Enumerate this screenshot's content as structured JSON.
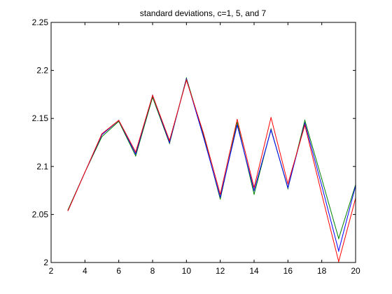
{
  "chart_data": {
    "type": "line",
    "title": "standard deviations, c=1, 5, and 7",
    "xlabel": "",
    "ylabel": "",
    "xlim": [
      2,
      20
    ],
    "ylim": [
      2,
      2.25
    ],
    "xticks": [
      2,
      4,
      6,
      8,
      10,
      12,
      14,
      16,
      18,
      20
    ],
    "yticks": [
      2,
      2.05,
      2.1,
      2.15,
      2.2,
      2.25
    ],
    "xtick_labels": [
      "2",
      "4",
      "6",
      "8",
      "10",
      "12",
      "14",
      "16",
      "18",
      "20"
    ],
    "ytick_labels": [
      "2",
      "2.05",
      "2.1",
      "2.15",
      "2.2",
      "2.25"
    ],
    "grid": false,
    "legend": "none",
    "x": [
      3,
      4,
      5,
      6,
      7,
      8,
      9,
      10,
      11,
      12,
      13,
      14,
      15,
      16,
      17,
      18,
      19,
      20
    ],
    "series": [
      {
        "color": "#008000",
        "values": [
          2.055,
          2.094,
          2.131,
          2.147,
          2.111,
          2.172,
          2.124,
          2.192,
          2.133,
          2.066,
          2.146,
          2.071,
          2.139,
          2.077,
          2.148,
          2.087,
          2.025,
          2.081
        ]
      },
      {
        "color": "#0000ff",
        "values": [
          2.054,
          2.094,
          2.133,
          2.148,
          2.113,
          2.174,
          2.125,
          2.191,
          2.131,
          2.068,
          2.143,
          2.075,
          2.138,
          2.078,
          2.145,
          2.08,
          2.012,
          2.08
        ]
      },
      {
        "color": "#ff0000",
        "values": [
          2.054,
          2.094,
          2.134,
          2.148,
          2.115,
          2.174,
          2.127,
          2.19,
          2.135,
          2.071,
          2.149,
          2.078,
          2.151,
          2.082,
          2.143,
          2.071,
          2.001,
          2.067
        ]
      }
    ]
  }
}
